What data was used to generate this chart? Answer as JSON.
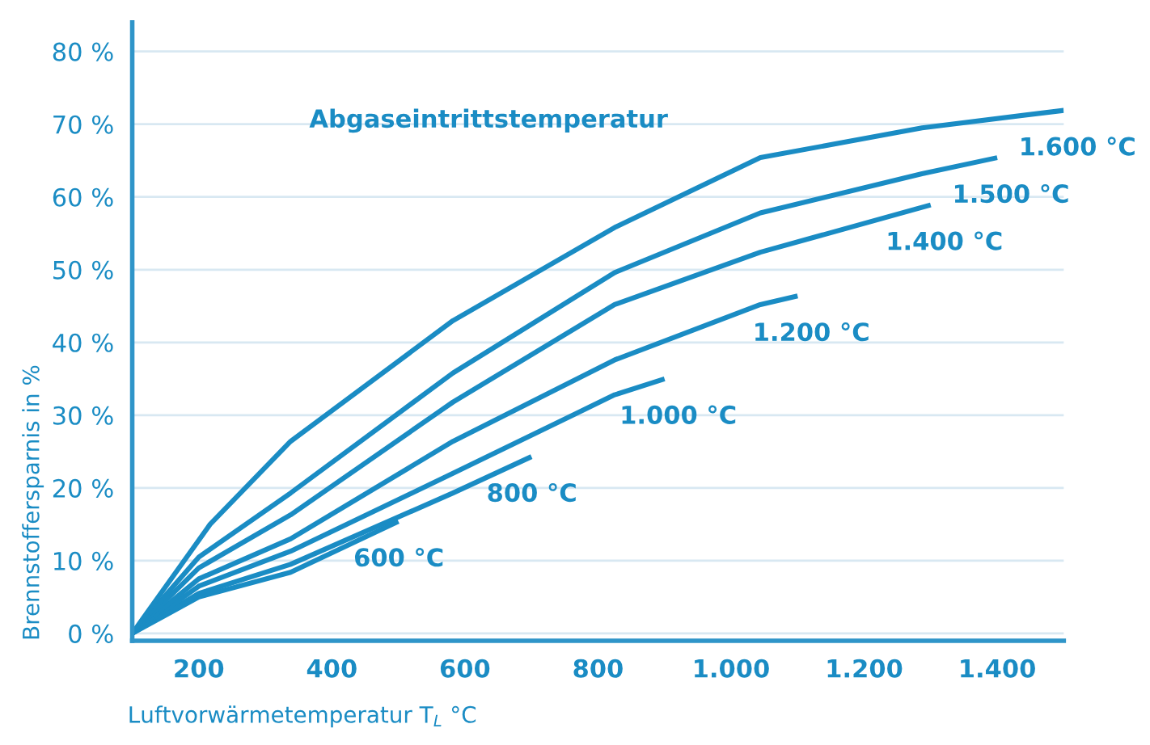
{
  "chart_data": {
    "type": "line",
    "xlabel": "Luftvorwärmetemperatur T$_{L}$ °C",
    "ylabel": "Brennstoffersparnis in %",
    "annotations": [
      "Abgaseintrittstemperatur"
    ],
    "xlim": [
      100,
      1500
    ],
    "ylim": [
      -1,
      84
    ],
    "xticks": [
      200,
      400,
      600,
      800,
      {
        "value": 1000,
        "label": "1.000"
      },
      {
        "value": 1200,
        "label": "1.200"
      },
      {
        "value": 1400,
        "label": "1.400"
      }
    ],
    "yticks": [
      {
        "value": 0,
        "label": "0 %"
      },
      {
        "value": 10,
        "label": "10 %"
      },
      {
        "value": 20,
        "label": "20 %"
      },
      {
        "value": 30,
        "label": "30 %"
      },
      {
        "value": 40,
        "label": "40 %"
      },
      {
        "value": 50,
        "label": "50 %"
      },
      {
        "value": 60,
        "label": "60 %"
      },
      {
        "value": 70,
        "label": "70 %"
      },
      {
        "value": 80,
        "label": "80 %"
      }
    ],
    "grid": "y",
    "legend": false,
    "marker": "none",
    "line_style": "solid",
    "series": [
      {
        "name": "600 °C",
        "color": "#1a8cc4",
        "x": [
          100,
          200,
          338,
          500
        ],
        "values": [
          0,
          5,
          8.4,
          15.4
        ]
      },
      {
        "name": "800 °C",
        "color": "#1a8cc4",
        "x": [
          100,
          200,
          338,
          582,
          700
        ],
        "values": [
          0,
          5.5,
          9.5,
          19.3,
          24.3
        ]
      },
      {
        "name": "1.000 °C",
        "color": "#1a8cc4",
        "x": [
          100,
          200,
          338,
          582,
          825,
          900
        ],
        "values": [
          0,
          6.5,
          11.3,
          22,
          32.8,
          35
        ]
      },
      {
        "name": "1.200 °C",
        "color": "#1a8cc4",
        "x": [
          100,
          200,
          338,
          582,
          825,
          1044,
          1100
        ],
        "values": [
          0,
          7.5,
          13,
          26.4,
          37.6,
          45.2,
          46.4
        ]
      },
      {
        "name": "1.400 °C",
        "color": "#1a8cc4",
        "x": [
          100,
          200,
          338,
          582,
          825,
          1044,
          1300
        ],
        "values": [
          0,
          9,
          16.3,
          31.8,
          45.2,
          52.4,
          58.9
        ]
      },
      {
        "name": "1.500 °C",
        "color": "#1a8cc4",
        "x": [
          100,
          200,
          338,
          582,
          825,
          1044,
          1287,
          1400
        ],
        "values": [
          0,
          10.5,
          19.3,
          35.8,
          49.6,
          57.8,
          63.2,
          65.4
        ]
      },
      {
        "name": "1.600 °C",
        "color": "#1a8cc4",
        "x": [
          100,
          217,
          338,
          582,
          825,
          1044,
          1287,
          1500
        ],
        "values": [
          0,
          15,
          26.4,
          43,
          55.8,
          65.4,
          69.5,
          71.9
        ]
      }
    ]
  }
}
